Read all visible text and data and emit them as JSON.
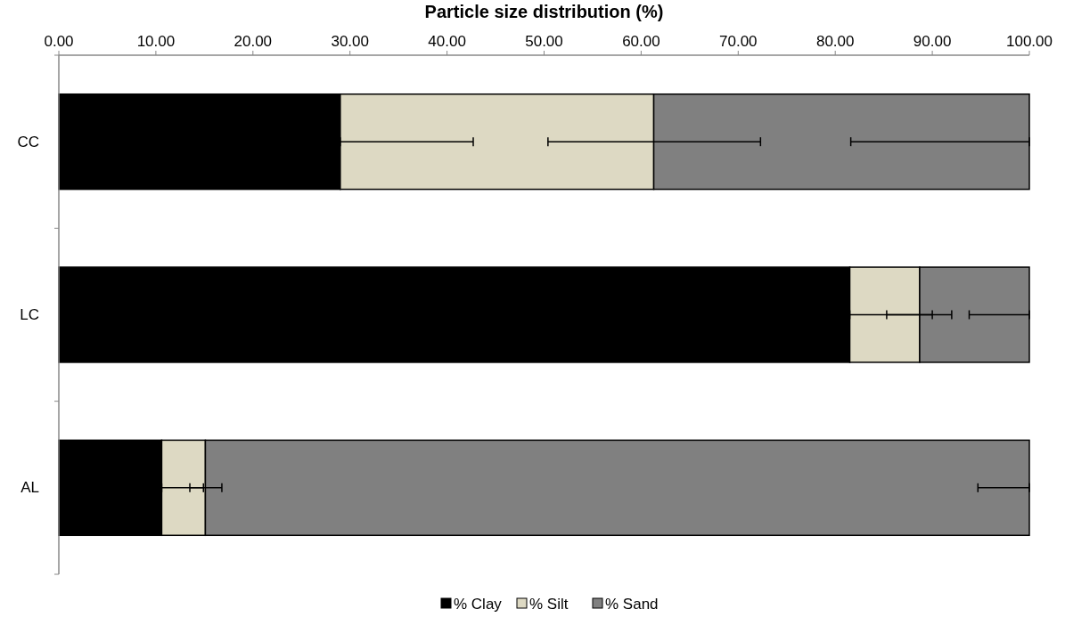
{
  "chart_data": {
    "type": "bar",
    "orientation": "horizontal",
    "stacked": true,
    "xlabel": "Particle size distribution (%)",
    "categories": [
      "CC",
      "LC",
      "AL"
    ],
    "series": [
      {
        "name": "% Clay",
        "color": "#000000",
        "values": [
          29.0,
          81.5,
          10.6
        ],
        "errors": [
          [
            29.0,
            42.7
          ],
          [
            81.5,
            90.0
          ],
          [
            10.6,
            14.9
          ]
        ]
      },
      {
        "name": "% Silt",
        "color": "#ddd9c3",
        "values": [
          32.3,
          7.2,
          4.5
        ],
        "errors": [
          [
            50.4,
            72.3
          ],
          [
            85.3,
            92.0
          ],
          [
            13.5,
            16.8
          ]
        ]
      },
      {
        "name": "% Sand",
        "color": "#808080",
        "values": [
          38.7,
          11.3,
          84.9
        ],
        "errors": [
          [
            81.6,
            100
          ],
          [
            93.8,
            100
          ],
          [
            94.7,
            100
          ]
        ]
      }
    ],
    "xlim": [
      0,
      100
    ],
    "xticks": [
      {
        "value": 0,
        "label": "0.00"
      },
      {
        "value": 10,
        "label": "10.00"
      },
      {
        "value": 20,
        "label": "20.00"
      },
      {
        "value": 30,
        "label": "30.00"
      },
      {
        "value": 40,
        "label": "40.00"
      },
      {
        "value": 50,
        "label": "50.00"
      },
      {
        "value": 60,
        "label": "60.00"
      },
      {
        "value": 70,
        "label": "70.00"
      },
      {
        "value": 80,
        "label": "80.00"
      },
      {
        "value": 90,
        "label": "90.00"
      },
      {
        "value": 100,
        "label": "100.00"
      }
    ],
    "grid": false,
    "legend": "bottom"
  }
}
